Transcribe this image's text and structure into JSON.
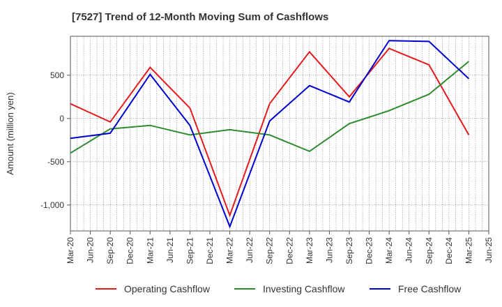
{
  "chart_data": {
    "type": "line",
    "title": "[7527]  Trend of 12-Month Moving Sum of Cashflows",
    "ylabel": "Amount (million yen)",
    "xlabel": "",
    "ylim": [
      -1300,
      950
    ],
    "yticks": [
      500,
      0,
      -500,
      -1000
    ],
    "ytick_labels": [
      "500",
      "0",
      "-500",
      "-1,000"
    ],
    "x_tick_labels": [
      "Mar-20",
      "Jun-20",
      "Sep-20",
      "Dec-20",
      "Mar-21",
      "Jun-21",
      "Sep-21",
      "Dec-21",
      "Mar-22",
      "Jun-22",
      "Sep-22",
      "Dec-22",
      "Mar-23",
      "Jun-23",
      "Sep-23",
      "Dec-23",
      "Mar-24",
      "Jun-24",
      "Sep-24",
      "Dec-24",
      "Mar-25",
      "Jun-25"
    ],
    "grid": true,
    "legend_position": "bottom",
    "series": [
      {
        "name": "Operating Cashflow",
        "color": "#e41a1c",
        "x": [
          "Mar-20",
          "Sep-20",
          "Mar-21",
          "Sep-21",
          "Mar-22",
          "Sep-22",
          "Mar-23",
          "Sep-23",
          "Mar-24",
          "Sep-24",
          "Mar-25"
        ],
        "values": [
          170,
          -40,
          590,
          120,
          -1120,
          170,
          770,
          250,
          810,
          620,
          -190
        ]
      },
      {
        "name": "Investing Cashflow",
        "color": "#2e8b2e",
        "x": [
          "Mar-20",
          "Sep-20",
          "Mar-21",
          "Sep-21",
          "Mar-22",
          "Sep-22",
          "Mar-23",
          "Sep-23",
          "Mar-24",
          "Sep-24",
          "Mar-25"
        ],
        "values": [
          -400,
          -120,
          -80,
          -190,
          -130,
          -190,
          -380,
          -60,
          90,
          280,
          660
        ]
      },
      {
        "name": "Free Cashflow",
        "color": "#0000cc",
        "x": [
          "Mar-20",
          "Sep-20",
          "Mar-21",
          "Sep-21",
          "Mar-22",
          "Sep-22",
          "Mar-23",
          "Sep-23",
          "Mar-24",
          "Sep-24",
          "Mar-25"
        ],
        "values": [
          -230,
          -170,
          510,
          -80,
          -1250,
          -30,
          380,
          190,
          900,
          890,
          460
        ]
      }
    ]
  }
}
